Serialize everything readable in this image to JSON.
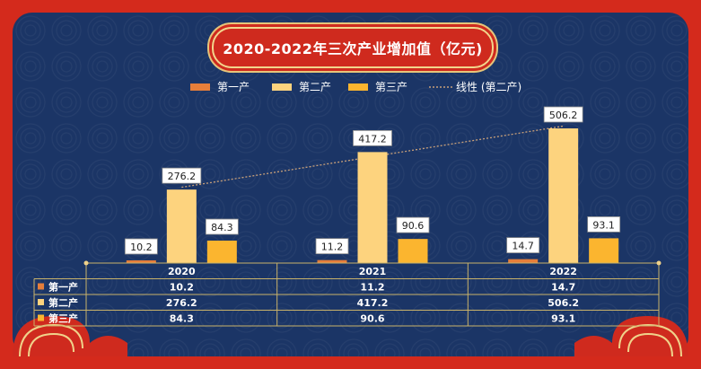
{
  "chart_data": {
    "type": "bar",
    "title": "2020-2022年三次产业增加值（亿元)",
    "categories": [
      "2020",
      "2021",
      "2022"
    ],
    "series": [
      {
        "name": "第一产",
        "color": "#e67e3a",
        "values": [
          10.2,
          11.2,
          14.7
        ]
      },
      {
        "name": "第二产",
        "color": "#fdd37e",
        "values": [
          276.2,
          417.2,
          506.2
        ]
      },
      {
        "name": "第三产",
        "color": "#fbb52f",
        "values": [
          84.3,
          90.6,
          93.1
        ]
      }
    ],
    "trendline": {
      "name": "线性 (第二产)",
      "series": "第二产",
      "color": "#c8a07a"
    },
    "ylim": [
      0,
      560
    ],
    "legend_position": "top",
    "data_table": true,
    "grid": false
  },
  "colors": {
    "frame": "#d42a1c",
    "panel": "#1b3566",
    "table_border": "#c9b26a",
    "text": "#ffffff"
  }
}
